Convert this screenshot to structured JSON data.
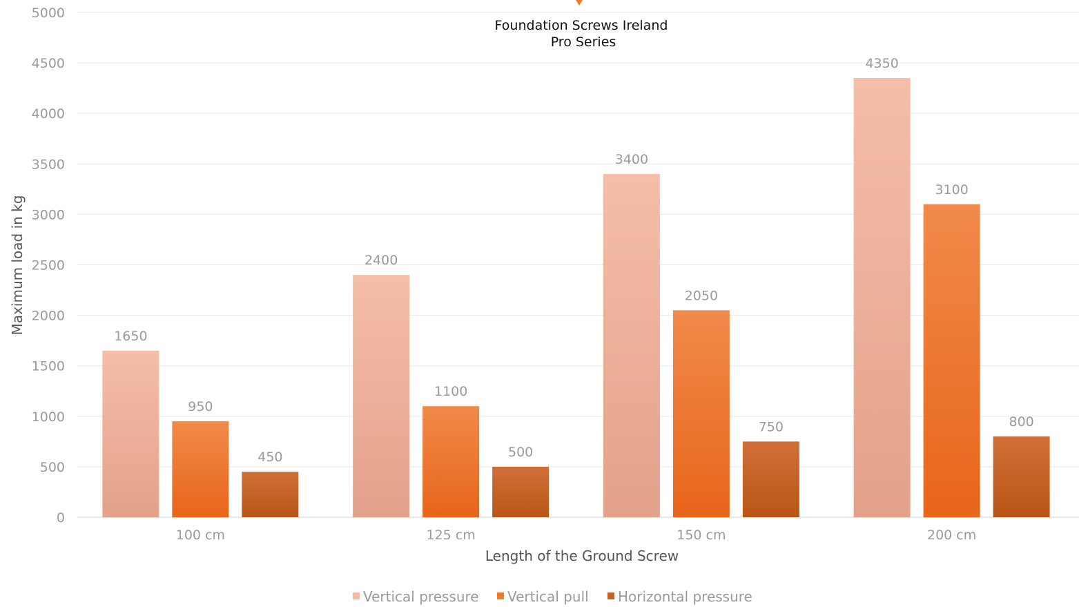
{
  "chart_data": {
    "type": "bar",
    "title": [
      "Foundation Screws Ireland",
      "Pro Series"
    ],
    "xlabel": "Length of the Ground Screw",
    "ylabel": "Maximum load in kg",
    "categories": [
      "100 cm",
      "125 cm",
      "150 cm",
      "200 cm"
    ],
    "series": [
      {
        "name": "Vertical pressure",
        "values": [
          1650,
          2400,
          3400,
          4350
        ],
        "color": "#f2b9a4"
      },
      {
        "name": "Vertical pull",
        "values": [
          950,
          1100,
          2050,
          3100
        ],
        "color": "#f07a2c"
      },
      {
        "name": "Horizontal pressure",
        "values": [
          450,
          500,
          750,
          800
        ],
        "color": "#c86128"
      }
    ],
    "ylim": [
      0,
      5000
    ],
    "yticks": [
      0,
      500,
      1000,
      1500,
      2000,
      2500,
      3000,
      3500,
      4000,
      4500,
      5000
    ],
    "grid": true,
    "legend_position": "bottom"
  }
}
